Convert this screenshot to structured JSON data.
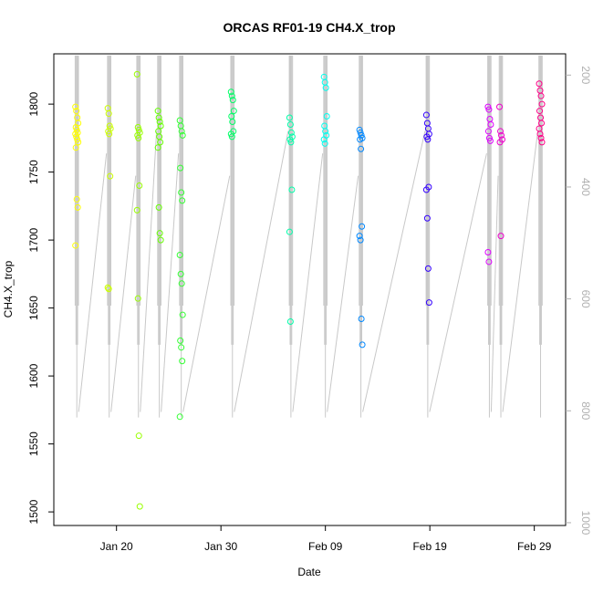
{
  "chart_data": {
    "type": "scatter",
    "title": "ORCAS RF01-19 CH4.X_trop",
    "xlabel": "Date",
    "ylabel": "CH4.X_trop",
    "xlim": [
      "2016-01-14",
      "2016-03-03"
    ],
    "ylim": [
      1490,
      1837
    ],
    "y2lim": [
      1005,
      162
    ],
    "y2_reversed": true,
    "xticks": [
      {
        "label": "Jan 20",
        "date": "2016-01-20"
      },
      {
        "label": "Jan 30",
        "date": "2016-01-30"
      },
      {
        "label": "Feb 09",
        "date": "2016-02-09"
      },
      {
        "label": "Feb 19",
        "date": "2016-02-19"
      },
      {
        "label": "Feb 29",
        "date": "2016-02-29"
      }
    ],
    "yticks": [
      1500,
      1550,
      1600,
      1650,
      1700,
      1750,
      1800
    ],
    "y2ticks": [
      200,
      400,
      600,
      800,
      1000
    ],
    "pressure_line_color": "#c8c8c8",
    "flights": [
      {
        "date": "2016-01-16.2",
        "color": "#ffff00",
        "values": [
          1798,
          1795,
          1790,
          1786,
          1783,
          1781,
          1779,
          1778,
          1776,
          1774,
          1772,
          1768,
          1730,
          1724,
          1696
        ]
      },
      {
        "date": "2016-01-19.3",
        "color": "#ccff00",
        "values": [
          1797,
          1793,
          1784,
          1782,
          1780,
          1778,
          1747,
          1665,
          1664
        ]
      },
      {
        "date": "2016-01-22.1",
        "color": "#99ff00",
        "values": [
          1822,
          1783,
          1781,
          1779,
          1777,
          1775,
          1740,
          1722,
          1657,
          1556,
          1504
        ]
      },
      {
        "date": "2016-01-24.1",
        "color": "#66ff00",
        "values": [
          1795,
          1790,
          1787,
          1784,
          1780,
          1776,
          1772,
          1768,
          1724,
          1705,
          1700
        ]
      },
      {
        "date": "2016-01-26.2",
        "color": "#33ff33",
        "values": [
          1788,
          1784,
          1780,
          1777,
          1753,
          1735,
          1729,
          1689,
          1675,
          1668,
          1645,
          1626,
          1621,
          1611,
          1570
        ]
      },
      {
        "date": "2016-01-31.1",
        "color": "#00ff66",
        "values": [
          1809,
          1806,
          1803,
          1795,
          1791,
          1787,
          1780,
          1778,
          1776
        ]
      },
      {
        "date": "2016-02-05.7",
        "color": "#00ffaa",
        "values": [
          1790,
          1785,
          1779,
          1776,
          1774,
          1772,
          1737,
          1706,
          1640
        ]
      },
      {
        "date": "2016-02-09.0",
        "color": "#00ffee",
        "values": [
          1820,
          1816,
          1812,
          1791,
          1784,
          1780,
          1777,
          1774,
          1771
        ]
      },
      {
        "date": "2016-02-12.4",
        "color": "#0088ff",
        "values": [
          1781,
          1779,
          1777,
          1775,
          1774,
          1767,
          1710,
          1703,
          1700,
          1642,
          1623
        ]
      },
      {
        "date": "2016-02-18.8",
        "color": "#3300ff",
        "values": [
          1792,
          1786,
          1782,
          1778,
          1776,
          1774,
          1739,
          1737,
          1716,
          1679,
          1654
        ]
      },
      {
        "date": "2016-02-24.7",
        "color": "#dd00ff",
        "values": [
          1798,
          1796,
          1789,
          1785,
          1780,
          1775,
          1773,
          1691,
          1684
        ]
      },
      {
        "date": "2016-02-25.8",
        "color": "#ee00cc",
        "values": [
          1798,
          1780,
          1777,
          1774,
          1772,
          1703
        ]
      },
      {
        "date": "2016-02-29.6",
        "color": "#ff0088",
        "values": [
          1815,
          1810,
          1806,
          1800,
          1795,
          1790,
          1786,
          1782,
          1778,
          1775,
          1772
        ]
      }
    ]
  }
}
